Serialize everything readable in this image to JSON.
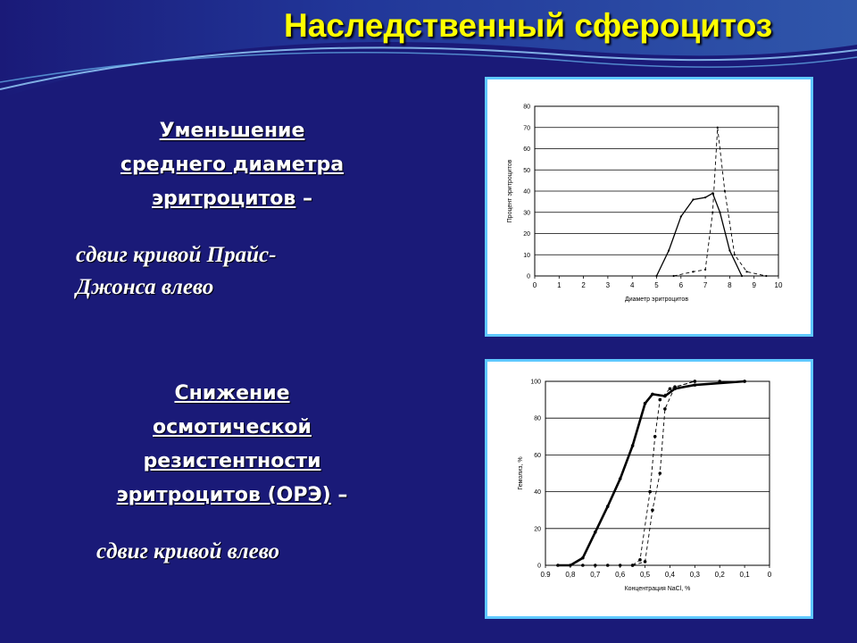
{
  "title": "Наследственный сфероцитоз",
  "section1": {
    "heading_lines": [
      "Уменьшение",
      "среднего диаметра",
      "эритроцитов"
    ],
    "heading_dash": "–",
    "subtitle_lines": [
      "сдвиг кривой Прайс-",
      "Джонса влево"
    ]
  },
  "section2": {
    "heading_lines": [
      "Снижение",
      "осмотической",
      "резистентности",
      "эритроцитов (ОРЭ)"
    ],
    "heading_dash": "–",
    "subtitle": "сдвиг кривой влево"
  },
  "colors": {
    "background": "#1a1a78",
    "title": "#ffff00",
    "panel_border": "#5ec8ff"
  },
  "chart_data": [
    {
      "type": "line",
      "xlabel": "Диаметр эритроцитов",
      "ylabel": "Процент эритроцитов",
      "xlim": [
        0,
        10
      ],
      "ylim": [
        0,
        80
      ],
      "xticks": [
        "0",
        "1",
        "2",
        "3",
        "4",
        "5",
        "6",
        "7",
        "8",
        "9",
        "10"
      ],
      "yticks": [
        "0",
        "10",
        "20",
        "30",
        "40",
        "50",
        "60",
        "70",
        "80"
      ],
      "grid": "horizontal",
      "series": [
        {
          "style": "solid",
          "x": [
            5.0,
            5.5,
            6.0,
            6.5,
            7.0,
            7.3,
            7.6,
            8.0,
            8.5
          ],
          "y": [
            0,
            12,
            28,
            36,
            37,
            39,
            30,
            12,
            0
          ]
        },
        {
          "style": "dashed",
          "x": [
            5.7,
            6.5,
            7.0,
            7.3,
            7.5,
            7.8,
            8.2,
            8.7,
            9.5
          ],
          "y": [
            0,
            2,
            3,
            30,
            70,
            40,
            10,
            2,
            0
          ]
        }
      ]
    },
    {
      "type": "line",
      "xlabel": "Концентрация NaCl, %",
      "ylabel": "Гемолиз, %",
      "xlim": [
        0.9,
        0
      ],
      "ylim": [
        0,
        100
      ],
      "xticks": [
        "0.9",
        "0,8",
        "0,7",
        "0,6",
        "0,5",
        "0,4",
        "0,3",
        "0,2",
        "0,1",
        "0"
      ],
      "yticks": [
        "0",
        "20",
        "40",
        "60",
        "80",
        "100"
      ],
      "grid": "horizontal",
      "series": [
        {
          "style": "solid-bold",
          "x": [
            0.85,
            0.8,
            0.75,
            0.7,
            0.65,
            0.6,
            0.55,
            0.5,
            0.47,
            0.42,
            0.38,
            0.3,
            0.1
          ],
          "y": [
            0,
            0,
            4,
            18,
            32,
            47,
            65,
            88,
            93,
            92,
            96,
            98,
            100
          ]
        },
        {
          "style": "dashed",
          "x": [
            0.75,
            0.7,
            0.65,
            0.6,
            0.55,
            0.52,
            0.48,
            0.46,
            0.44,
            0.4,
            0.3,
            0.2
          ],
          "y": [
            0,
            0,
            0,
            0,
            0,
            3,
            40,
            70,
            90,
            96,
            100,
            100
          ]
        },
        {
          "style": "dashed",
          "x": [
            0.55,
            0.5,
            0.47,
            0.44,
            0.42,
            0.38,
            0.3,
            0.1
          ],
          "y": [
            0,
            2,
            30,
            50,
            85,
            97,
            100,
            100
          ]
        }
      ]
    }
  ]
}
